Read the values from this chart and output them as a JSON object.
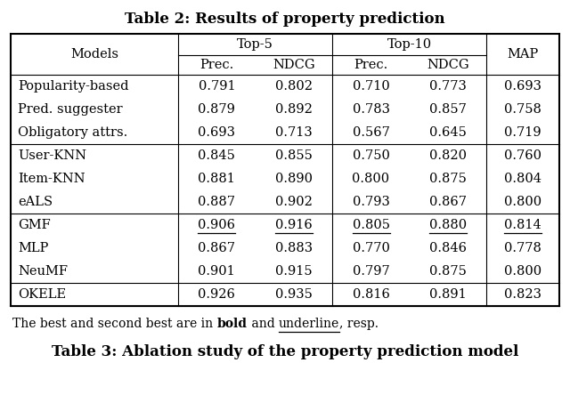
{
  "title": "Table 2: Results of property prediction",
  "groups": [
    {
      "rows": [
        [
          "Popularity-based",
          "0.791",
          "0.802",
          "0.710",
          "0.773",
          "0.693"
        ],
        [
          "Pred. suggester",
          "0.879",
          "0.892",
          "0.783",
          "0.857",
          "0.758"
        ],
        [
          "Obligatory attrs.",
          "0.693",
          "0.713",
          "0.567",
          "0.645",
          "0.719"
        ]
      ]
    },
    {
      "rows": [
        [
          "User-KNN",
          "0.845",
          "0.855",
          "0.750",
          "0.820",
          "0.760"
        ],
        [
          "Item-KNN",
          "0.881",
          "0.890",
          "0.800",
          "0.875",
          "0.804"
        ],
        [
          "eALS",
          "0.887",
          "0.902",
          "0.793",
          "0.867",
          "0.800"
        ]
      ]
    },
    {
      "rows": [
        [
          "GMF",
          "0.906",
          "0.916",
          "0.805",
          "0.880",
          "0.814"
        ],
        [
          "MLP",
          "0.867",
          "0.883",
          "0.770",
          "0.846",
          "0.778"
        ],
        [
          "NeuMF",
          "0.901",
          "0.915",
          "0.797",
          "0.875",
          "0.800"
        ]
      ]
    },
    {
      "rows": [
        [
          "OKELE",
          "0.926",
          "0.935",
          "0.816",
          "0.891",
          "0.823"
        ]
      ]
    }
  ],
  "bold_row_idx": 10,
  "underline_row_idx": 6,
  "bg_color": "#ffffff",
  "text_color": "#000000",
  "title_fontsize": 12,
  "body_fontsize": 10.5,
  "footnote_fontsize": 10,
  "bottom_title": "Table 3: Ablation study of the property prediction model"
}
